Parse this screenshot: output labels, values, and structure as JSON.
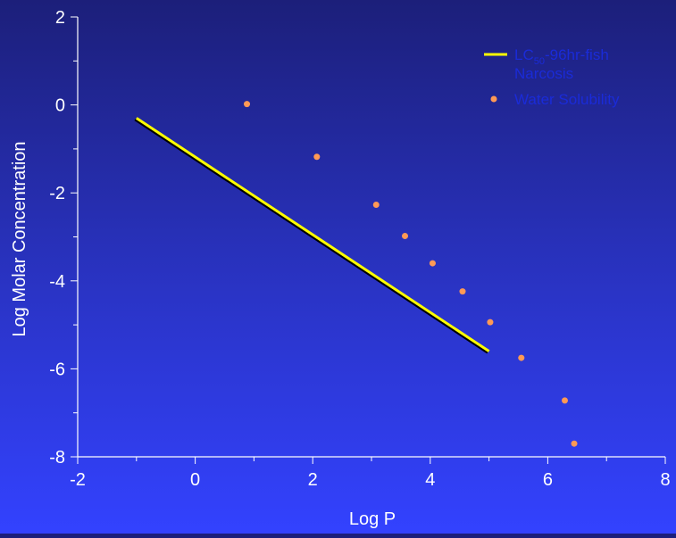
{
  "chart_data": {
    "type": "scatter",
    "title": "",
    "xlabel": "Log P",
    "ylabel": "Log Molar Concentration",
    "xlim": [
      -2,
      8
    ],
    "ylim": [
      -8,
      2
    ],
    "x_ticks": [
      "-2",
      "0",
      "2",
      "4",
      "6",
      "8"
    ],
    "y_ticks": [
      "2",
      "0",
      "-2",
      "-4",
      "-6",
      "-8"
    ],
    "grid": false,
    "legend_position": "top-right",
    "series": [
      {
        "name": "LC50-96hr-fish Narcosis",
        "legend_main": "LC",
        "legend_sub": "50",
        "legend_rest": "-96hr-fish",
        "legend_line2": "Narcosis",
        "kind": "line",
        "color": "#ffff00",
        "x": [
          -1.0,
          5.0
        ],
        "y": [
          -0.3,
          -5.6
        ]
      },
      {
        "name": "Water Solubility",
        "kind": "scatter",
        "color": "#ff9955",
        "x": [
          0.88,
          2.07,
          3.08,
          3.57,
          4.04,
          4.55,
          5.02,
          5.55,
          6.29,
          6.45
        ],
        "y": [
          0.02,
          -1.18,
          -2.27,
          -2.98,
          -3.6,
          -4.24,
          -4.94,
          -5.75,
          -6.72,
          -7.7
        ]
      }
    ],
    "colors": {
      "axis": "#ffffff",
      "tick_label": "#ffffff",
      "legend_text": "#1a2bd8"
    }
  }
}
